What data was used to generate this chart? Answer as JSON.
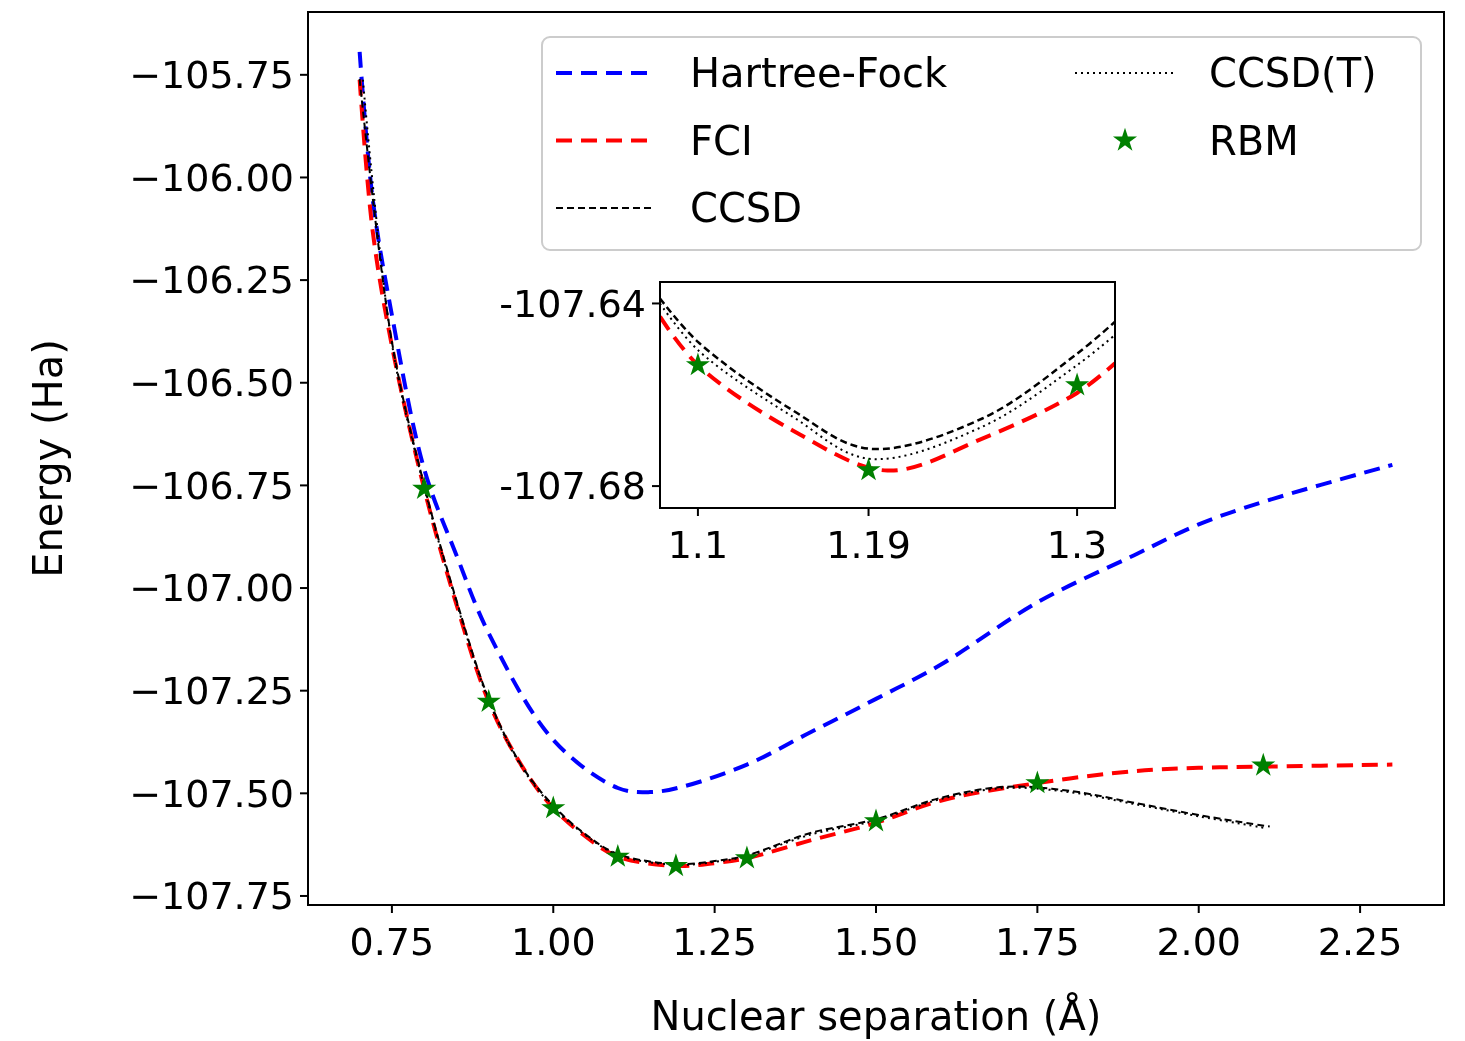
{
  "chart_data": [
    {
      "type": "line",
      "xlabel": "Nuclear separation (Å)",
      "ylabel": "Energy (Ha)",
      "xlim": [
        0.62,
        2.38
      ],
      "ylim": [
        -107.772,
        -105.597
      ],
      "xticks": [
        {
          "value": 0.75,
          "label": "0.75"
        },
        {
          "value": 1.0,
          "label": "1.00"
        },
        {
          "value": 1.25,
          "label": "1.25"
        },
        {
          "value": 1.5,
          "label": "1.50"
        },
        {
          "value": 1.75,
          "label": "1.75"
        },
        {
          "value": 2.0,
          "label": "2.00"
        },
        {
          "value": 2.25,
          "label": "2.25"
        }
      ],
      "yticks": [
        {
          "value": -105.75,
          "label": "−105.75"
        },
        {
          "value": -106.0,
          "label": "−106.00"
        },
        {
          "value": -106.25,
          "label": "−106.25"
        },
        {
          "value": -106.5,
          "label": "−106.50"
        },
        {
          "value": -106.75,
          "label": "−106.75"
        },
        {
          "value": -107.0,
          "label": "−107.00"
        },
        {
          "value": -107.25,
          "label": "−107.25"
        },
        {
          "value": -107.5,
          "label": "−107.50"
        },
        {
          "value": -107.75,
          "label": "−107.75"
        }
      ],
      "legend": "top right",
      "grid": false,
      "series": [
        {
          "name": "Hartree-Fock",
          "color": "#0000ff",
          "line_style": "dashed",
          "x": [
            0.7,
            0.72,
            0.75,
            0.8,
            0.85,
            0.9,
            1.0,
            1.1,
            1.15,
            1.2,
            1.3,
            1.4,
            1.5,
            1.6,
            1.75,
            1.9,
            2.0,
            2.1,
            2.3
          ],
          "values": [
            -105.694,
            -106.05,
            -106.335,
            -106.71,
            -106.92,
            -107.11,
            -107.37,
            -107.487,
            -107.497,
            -107.484,
            -107.43,
            -107.35,
            -107.27,
            -107.187,
            -107.035,
            -106.92,
            -106.845,
            -106.79,
            -106.7
          ]
        },
        {
          "name": "FCI",
          "color": "#ff0000",
          "line_style": "dashed",
          "x": [
            0.7,
            0.72,
            0.75,
            0.8,
            0.85,
            0.9,
            0.95,
            1.0,
            1.05,
            1.1,
            1.19,
            1.25,
            1.3,
            1.4,
            1.5,
            1.6,
            1.75,
            1.9,
            2.0,
            2.1,
            2.3
          ],
          "values": [
            -105.762,
            -106.128,
            -106.41,
            -106.758,
            -107.04,
            -107.277,
            -107.43,
            -107.536,
            -107.605,
            -107.654,
            -107.677,
            -107.67,
            -107.658,
            -107.614,
            -107.572,
            -107.518,
            -107.475,
            -107.446,
            -107.438,
            -107.435,
            -107.43
          ]
        },
        {
          "name": "CCSD",
          "color": "#000000",
          "line_style": "dashed",
          "x": [
            0.7,
            0.75,
            0.8,
            0.85,
            0.9,
            0.95,
            1.0,
            1.05,
            1.1,
            1.19,
            1.25,
            1.3,
            1.4,
            1.5,
            1.6,
            1.7,
            1.8,
            1.9,
            2.0,
            2.11
          ],
          "values": [
            -105.76,
            -106.4,
            -106.75,
            -107.03,
            -107.27,
            -107.43,
            -107.53,
            -107.6,
            -107.648,
            -107.672,
            -107.665,
            -107.651,
            -107.596,
            -107.563,
            -107.511,
            -107.484,
            -107.494,
            -107.523,
            -107.553,
            -107.581
          ]
        },
        {
          "name": "CCSD(T)",
          "color": "#000000",
          "line_style": "dotted",
          "x": [
            0.705,
            0.75,
            0.8,
            0.85,
            0.9,
            0.95,
            1.0,
            1.05,
            1.1,
            1.19,
            1.25,
            1.3,
            1.4,
            1.5,
            1.6,
            1.7,
            1.8,
            1.9,
            2.0,
            2.105
          ],
          "values": [
            -105.762,
            -106.405,
            -106.755,
            -107.035,
            -107.274,
            -107.433,
            -107.534,
            -107.602,
            -107.65,
            -107.674,
            -107.667,
            -107.653,
            -107.6,
            -107.566,
            -107.514,
            -107.487,
            -107.497,
            -107.526,
            -107.556,
            -107.585
          ]
        },
        {
          "name": "RBM",
          "type": "scatter",
          "marker": "star",
          "color": "#008000",
          "x": [
            0.8,
            0.9,
            1.0,
            1.1,
            1.19,
            1.3,
            1.5,
            1.75,
            2.1
          ],
          "values": [
            -106.758,
            -107.277,
            -107.536,
            -107.654,
            -107.677,
            -107.658,
            -107.568,
            -107.475,
            -107.432
          ]
        }
      ]
    },
    {
      "type": "line",
      "xlim": [
        1.08,
        1.32
      ],
      "ylim": [
        -107.6848,
        -107.6353
      ],
      "xticks": [
        1.1,
        1.19,
        1.3
      ],
      "yticks": [
        -107.64,
        -107.68
      ],
      "grid": false,
      "series": [
        {
          "color": "#ff0000",
          "line_style": "dashed",
          "x": [
            1.08,
            1.1,
            1.15,
            1.2,
            1.25,
            1.3,
            1.32
          ],
          "values": [
            -107.6429,
            -107.6535,
            -107.6678,
            -107.6766,
            -107.6696,
            -107.6596,
            -107.6531
          ]
        },
        {
          "color": "#000000",
          "line_style": "dashed",
          "x": [
            1.08,
            1.1,
            1.15,
            1.19,
            1.25,
            1.3,
            1.32
          ],
          "values": [
            -107.6389,
            -107.6484,
            -107.6634,
            -107.6718,
            -107.6652,
            -107.651,
            -107.644
          ]
        },
        {
          "color": "#000000",
          "line_style": "dotted",
          "x": [
            1.08,
            1.1,
            1.15,
            1.19,
            1.25,
            1.3,
            1.32
          ],
          "values": [
            -107.64,
            -107.6502,
            -107.6648,
            -107.674,
            -107.667,
            -107.6535,
            -107.6469
          ]
        },
        {
          "type": "scatter",
          "marker": "star",
          "color": "#008000",
          "x": [
            1.1,
            1.19,
            1.3
          ],
          "values": [
            -107.6535,
            -107.6765,
            -107.6579
          ]
        }
      ]
    }
  ]
}
